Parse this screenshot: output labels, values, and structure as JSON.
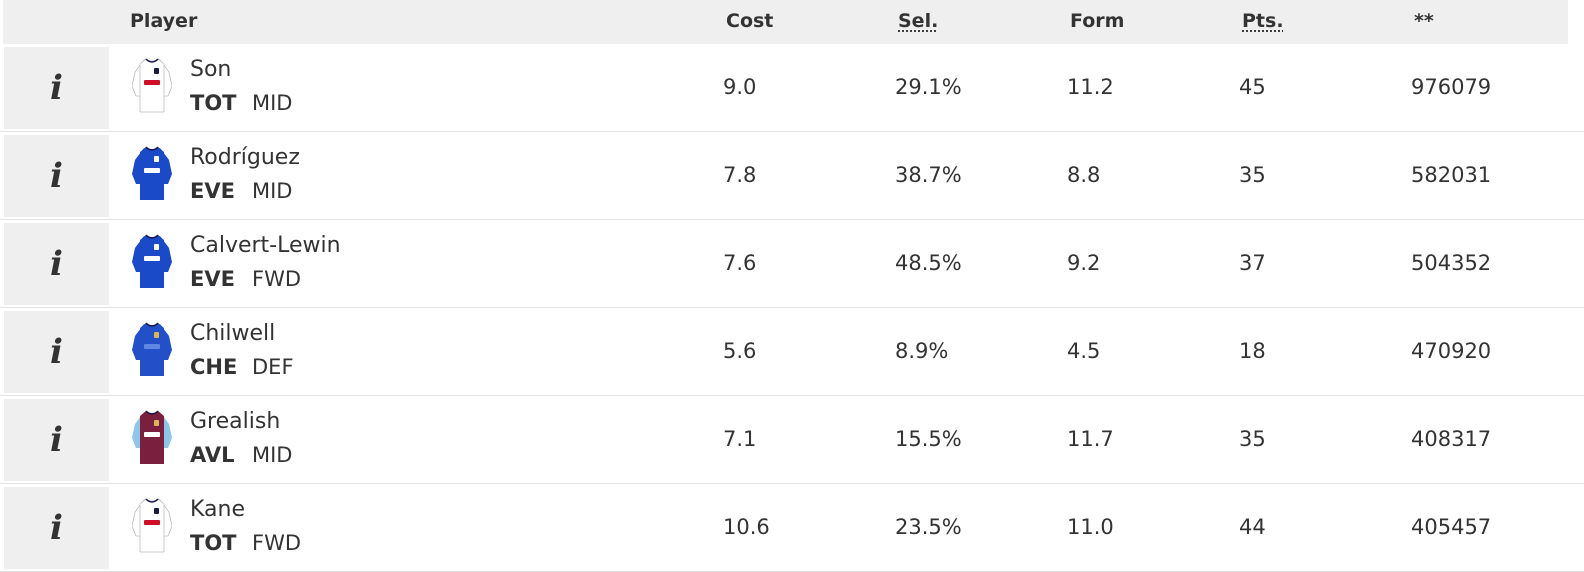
{
  "header": {
    "player": "Player",
    "cost": "Cost",
    "sel": "Sel.",
    "form": "Form",
    "pts": "Pts.",
    "extra": "**"
  },
  "rows": [
    {
      "name": "Son",
      "team": "TOT",
      "pos": "MID",
      "cost": "9.0",
      "sel": "29.1%",
      "form": "11.2",
      "pts": "45",
      "extra": "976079",
      "shirt": "tot-shirt-icon"
    },
    {
      "name": "Rodríguez",
      "team": "EVE",
      "pos": "MID",
      "cost": "7.8",
      "sel": "38.7%",
      "form": "8.8",
      "pts": "35",
      "extra": "582031",
      "shirt": "eve-shirt-icon"
    },
    {
      "name": "Calvert-Lewin",
      "team": "EVE",
      "pos": "FWD",
      "cost": "7.6",
      "sel": "48.5%",
      "form": "9.2",
      "pts": "37",
      "extra": "504352",
      "shirt": "eve-shirt-icon"
    },
    {
      "name": "Chilwell",
      "team": "CHE",
      "pos": "DEF",
      "cost": "5.6",
      "sel": "8.9%",
      "form": "4.5",
      "pts": "18",
      "extra": "470920",
      "shirt": "che-shirt-icon"
    },
    {
      "name": "Grealish",
      "team": "AVL",
      "pos": "MID",
      "cost": "7.1",
      "sel": "15.5%",
      "form": "11.7",
      "pts": "35",
      "extra": "408317",
      "shirt": "avl-shirt-icon"
    },
    {
      "name": "Kane",
      "team": "TOT",
      "pos": "FWD",
      "cost": "10.6",
      "sel": "23.5%",
      "form": "11.0",
      "pts": "44",
      "extra": "405457",
      "shirt": "tot-shirt-icon"
    }
  ],
  "info_glyph": "i",
  "colors": {
    "header_bg": "#efefef",
    "tot_body": "#ffffff",
    "eve_body": "#1b4ac9",
    "che_body": "#2350c8",
    "avl_body": "#7a1f3d",
    "avl_sleeve": "#8ec6ea"
  }
}
